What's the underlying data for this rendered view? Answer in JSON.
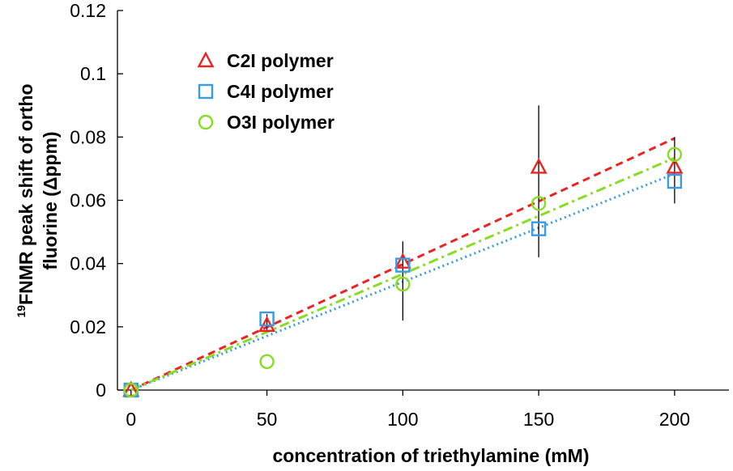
{
  "chart_data": {
    "type": "scatter",
    "xlabel": "concentration of triethylamine (mM)",
    "ylabel_line1": "FNMR peak shift of ortho",
    "ylabel_sup": "19",
    "ylabel_line2": "fluorine (Δppm)",
    "xlim": [
      -5,
      220
    ],
    "ylim": [
      0,
      0.12
    ],
    "xticks": [
      0,
      50,
      100,
      150,
      200
    ],
    "xtick_labels": [
      "0",
      "50",
      "100",
      "150",
      "200"
    ],
    "yticks": [
      0,
      0.02,
      0.04,
      0.06,
      0.08,
      0.1,
      0.12
    ],
    "ytick_labels": [
      "0",
      "0.02",
      "0.04",
      "0.06",
      "0.08",
      "0.1",
      "0.12"
    ],
    "grid": false,
    "legend_position": "top-left",
    "series": [
      {
        "name": "C2I polymer",
        "marker": "triangle",
        "color": "#ee2222",
        "x": [
          0,
          50,
          100,
          150,
          200
        ],
        "y": [
          0,
          0.0205,
          0.0405,
          0.0705,
          0.0705
        ],
        "fit": {
          "slope": 0.000398,
          "intercept": 0,
          "dash": "9,6"
        }
      },
      {
        "name": "C4I polymer",
        "marker": "square",
        "color": "#3a9ae0",
        "x": [
          0,
          50,
          100,
          150,
          200
        ],
        "y": [
          0,
          0.0225,
          0.0395,
          0.051,
          0.066
        ],
        "fit": {
          "slope": 0.000342,
          "intercept": 0,
          "dash": "2,4"
        }
      },
      {
        "name": "O3I polymer",
        "marker": "circle",
        "color": "#88dd22",
        "x": [
          0,
          50,
          100,
          150,
          200
        ],
        "y": [
          0,
          0.009,
          0.0335,
          0.059,
          0.0745
        ],
        "fit": {
          "slope": 0.000367,
          "intercept": 0,
          "dash": "12,5,3,5"
        }
      }
    ],
    "error_bars": [
      {
        "x": 50,
        "low": 0.019,
        "high": 0.024
      },
      {
        "x": 100,
        "low": 0.022,
        "high": 0.047
      },
      {
        "x": 150,
        "low": 0.042,
        "high": 0.09
      },
      {
        "x": 200,
        "low": 0.059,
        "high": 0.08
      }
    ]
  }
}
